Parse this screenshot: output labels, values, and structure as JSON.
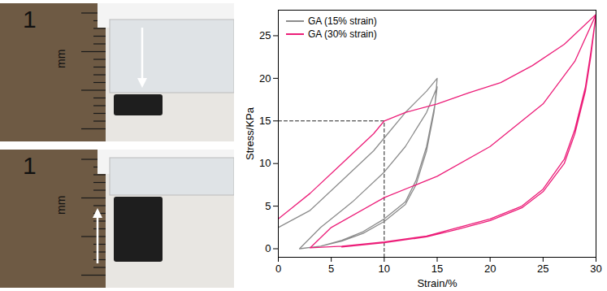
{
  "photo_panels": {
    "ruler_number": "1",
    "ruler_unit": "mm"
  },
  "chart_data": {
    "type": "line",
    "x_label": "Strain/%",
    "y_label": "Stress/KPa",
    "xlim": [
      0,
      30
    ],
    "xticks": [
      0,
      5,
      10,
      15,
      20,
      25,
      30
    ],
    "ylim": [
      -1,
      28
    ],
    "yticks": [
      0,
      5,
      10,
      15,
      20,
      25
    ],
    "legend": "top-left",
    "reference_point": {
      "x": 10,
      "y": 15
    },
    "series": [
      {
        "name": "GA (15% strain)",
        "color": "#8c8c8c",
        "x": [
          0,
          3,
          6,
          9,
          10,
          12,
          14,
          15,
          14.8,
          14,
          13,
          12,
          10,
          8,
          6,
          4,
          2,
          4,
          7,
          10,
          12,
          14,
          15,
          14.7,
          14,
          13,
          12,
          10,
          8,
          6,
          4
        ],
        "values": [
          2.5,
          4.5,
          8,
          11.5,
          13,
          16,
          18.5,
          20,
          17,
          12,
          8,
          5.5,
          3.5,
          2,
          1,
          0.3,
          0,
          2.5,
          5.5,
          9,
          12,
          16,
          19,
          16,
          11.5,
          7.5,
          5.2,
          3.2,
          1.8,
          0.9,
          0.3
        ]
      },
      {
        "name": "GA (30% strain)",
        "color": "#ec1e79",
        "x": [
          0,
          3,
          6,
          9,
          10,
          12,
          15,
          18,
          21,
          24,
          27,
          30,
          29.5,
          29,
          28,
          27,
          25,
          23,
          20,
          17,
          14,
          10,
          6,
          3,
          5,
          10,
          15,
          20,
          25,
          28,
          30,
          29.5,
          29,
          28,
          27,
          25,
          23,
          20,
          17,
          14,
          10,
          6
        ],
        "values": [
          3.5,
          6.5,
          10,
          13.5,
          15,
          16,
          17,
          18.3,
          19.5,
          21.5,
          24,
          27.5,
          23,
          19,
          14,
          10.5,
          7,
          5,
          3.5,
          2.5,
          1.5,
          0.8,
          0.3,
          0.1,
          2.5,
          6,
          8.5,
          12,
          17,
          22,
          27.5,
          22.5,
          18.5,
          13.5,
          10,
          6.7,
          4.8,
          3.3,
          2.3,
          1.4,
          0.7,
          0.2
        ]
      }
    ]
  }
}
